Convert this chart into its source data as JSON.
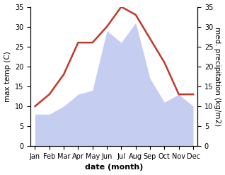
{
  "months": [
    "Jan",
    "Feb",
    "Mar",
    "Apr",
    "May",
    "Jun",
    "Jul",
    "Aug",
    "Sep",
    "Oct",
    "Nov",
    "Dec"
  ],
  "temperature": [
    10,
    13,
    18,
    26,
    26,
    30,
    35,
    33,
    27,
    21,
    13,
    13
  ],
  "precipitation": [
    8,
    8,
    10,
    13,
    14,
    29,
    26,
    31,
    17,
    11,
    13,
    10
  ],
  "temp_color": "#c0392b",
  "precip_color": "#c5cef0",
  "background_color": "#ffffff",
  "ylabel_left": "max temp (C)",
  "ylabel_right": "med. precipitation (kg/m2)",
  "xlabel": "date (month)",
  "ylim": [
    0,
    35
  ],
  "yticks": [
    0,
    5,
    10,
    15,
    20,
    25,
    30,
    35
  ],
  "label_fontsize": 7.5,
  "tick_fontsize": 7,
  "xlabel_fontsize": 8,
  "linewidth": 1.8
}
